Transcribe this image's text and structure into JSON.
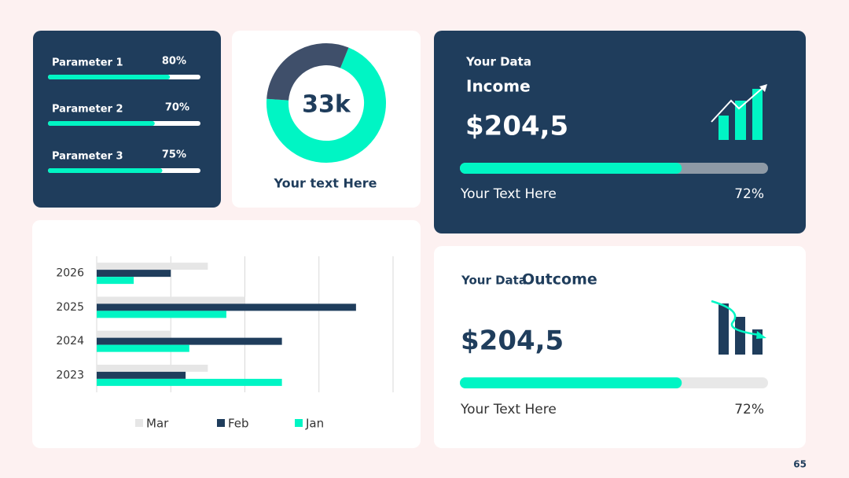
{
  "parameters": [
    {
      "label": "Parameter 1",
      "value": 80,
      "value_label": "80%"
    },
    {
      "label": "Parameter 2",
      "value": 70,
      "value_label": "70%"
    },
    {
      "label": "Parameter 3",
      "value": 75,
      "value_label": "75%"
    }
  ],
  "donut": {
    "center_text": "33k",
    "caption": "Your text Here",
    "segments": [
      {
        "value": 70,
        "color": "#00f5c4"
      },
      {
        "value": 30,
        "color": "#3f4f6a"
      }
    ]
  },
  "income_card": {
    "kicker": "Your Data",
    "title": "Income",
    "amount": "$204,5",
    "caption": "Your Text Here",
    "value": 72,
    "value_label": "72%"
  },
  "outcome_card": {
    "kicker": "Your Data",
    "title": "Outcome",
    "amount": "$204,5",
    "caption": "Your Text Here",
    "value": 72,
    "value_label": "72%"
  },
  "chart_data": {
    "type": "bar",
    "orientation": "horizontal",
    "categories": [
      "2023",
      "2024",
      "2025",
      "2026"
    ],
    "series": [
      {
        "name": "Mar",
        "color": "#e6e6e6",
        "values": [
          1.5,
          1,
          2,
          1.5
        ]
      },
      {
        "name": "Feb",
        "color": "#1f3d5c",
        "values": [
          1.2,
          2.5,
          3.5,
          1
        ]
      },
      {
        "name": "Jan",
        "color": "#00f5c4",
        "values": [
          2.5,
          1.25,
          1.75,
          0.5
        ]
      }
    ],
    "xlim": [
      0,
      4
    ],
    "grid": true
  },
  "page_number": "65"
}
